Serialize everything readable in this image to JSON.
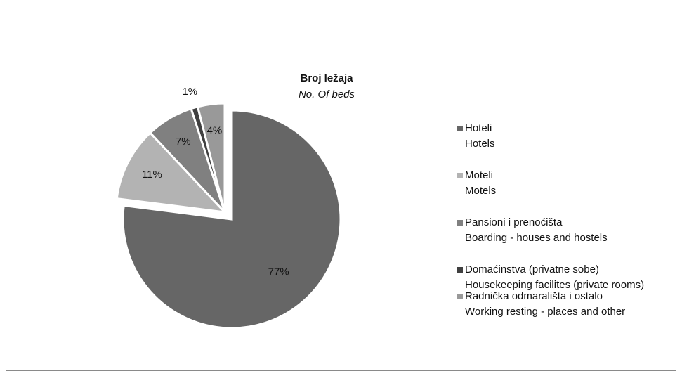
{
  "chart_data": {
    "type": "pie",
    "title": "Broj ležaja",
    "subtitle": "No. Of beds",
    "categories": [
      [
        "Hoteli",
        "Hotels"
      ],
      [
        "Moteli",
        "Motels"
      ],
      [
        "Pansioni  i  prenoćišta",
        "Boarding - houses and hostels"
      ],
      [
        "Domaćinstva (privatne sobe)",
        "Housekeeping facilites (private rooms)"
      ],
      [
        "Radnička odmarališta i ostalo",
        "Working resting - places and other"
      ]
    ],
    "values": [
      77,
      11,
      7,
      1,
      4
    ],
    "value_labels": [
      "77%",
      "11%",
      "7%",
      "1%",
      "4%"
    ],
    "colors": [
      "#666666",
      "#b3b3b3",
      "#808080",
      "#404040",
      "#999999"
    ],
    "legend": "right"
  }
}
